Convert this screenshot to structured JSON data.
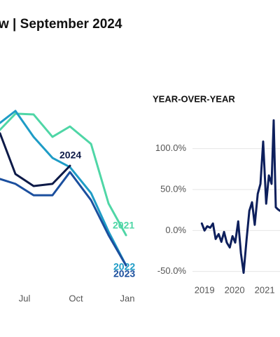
{
  "title": "w | September 2024",
  "chart_data": [
    {
      "type": "line",
      "x": [
        5.57,
        6.47,
        7.53,
        8.63,
        9.65,
        10.88,
        11.9,
        12.92
      ],
      "xlim": [
        5.57,
        13.53
      ],
      "xticks": [
        {
          "value": 7,
          "label": "Jul"
        },
        {
          "value": 10,
          "label": "Oct"
        },
        {
          "value": 13,
          "label": "Jan"
        }
      ],
      "ylim": [
        0,
        100
      ],
      "series": [
        {
          "name": "2021",
          "color": "#4fd6a6",
          "values": [
            80.4,
            88.6,
            88.2,
            76.8,
            82.1,
            73.2,
            42.9,
            26.8
          ]
        },
        {
          "name": "2022",
          "color": "#1e9cc6",
          "values": [
            83.9,
            90,
            76.8,
            66.1,
            61.4,
            48.2,
            28.6,
            11.4
          ]
        },
        {
          "name": "2023",
          "color": "#1b4f9e",
          "values": [
            55.4,
            52.9,
            47.1,
            47.1,
            58.9,
            44.6,
            26.8,
            11.4
          ]
        },
        {
          "name": "2024",
          "color": "#0d1a48",
          "values": [
            78.6,
            57.9,
            51.8,
            52.9,
            62.1,
            null,
            null,
            null
          ]
        }
      ]
    },
    {
      "type": "line",
      "title": "YEAR-OVER-YEAR",
      "x": [
        2018.91,
        2019,
        2019.09,
        2019.19,
        2019.28,
        2019.37,
        2019.47,
        2019.56,
        2019.65,
        2019.74,
        2019.84,
        2019.93,
        2020.02,
        2020.12,
        2020.21,
        2020.3,
        2020.4,
        2020.49,
        2020.58,
        2020.67,
        2020.77,
        2020.86,
        2020.95,
        2021.05,
        2021.14,
        2021.23,
        2021.3,
        2021.37,
        2021.44,
        2021.51
      ],
      "xlim": [
        2018.6,
        2021.51
      ],
      "xticks": [
        2019,
        2020,
        2021
      ],
      "ylim": [
        -70,
        170
      ],
      "yticks": [
        {
          "value": 100,
          "label": "100.0%"
        },
        {
          "value": 50,
          "label": "50.0%"
        },
        {
          "value": 0,
          "label": "0.0%"
        },
        {
          "value": -50,
          "label": "-50.0%"
        }
      ],
      "grid": true,
      "series": [
        {
          "name": "YoY",
          "color": "#0d1f5c",
          "values": [
            8.6,
            0,
            5.2,
            3.4,
            8.6,
            -10.3,
            -4.3,
            -13.8,
            -1.7,
            -14.7,
            -20.7,
            -6.9,
            -14.7,
            11.2,
            -27.6,
            -51.7,
            -10.3,
            24.1,
            34.5,
            6.9,
            44.8,
            56.9,
            108.6,
            32.8,
            67.2,
            56.9,
            134.5,
            28.4,
            25.9,
            24.1
          ]
        }
      ]
    }
  ]
}
